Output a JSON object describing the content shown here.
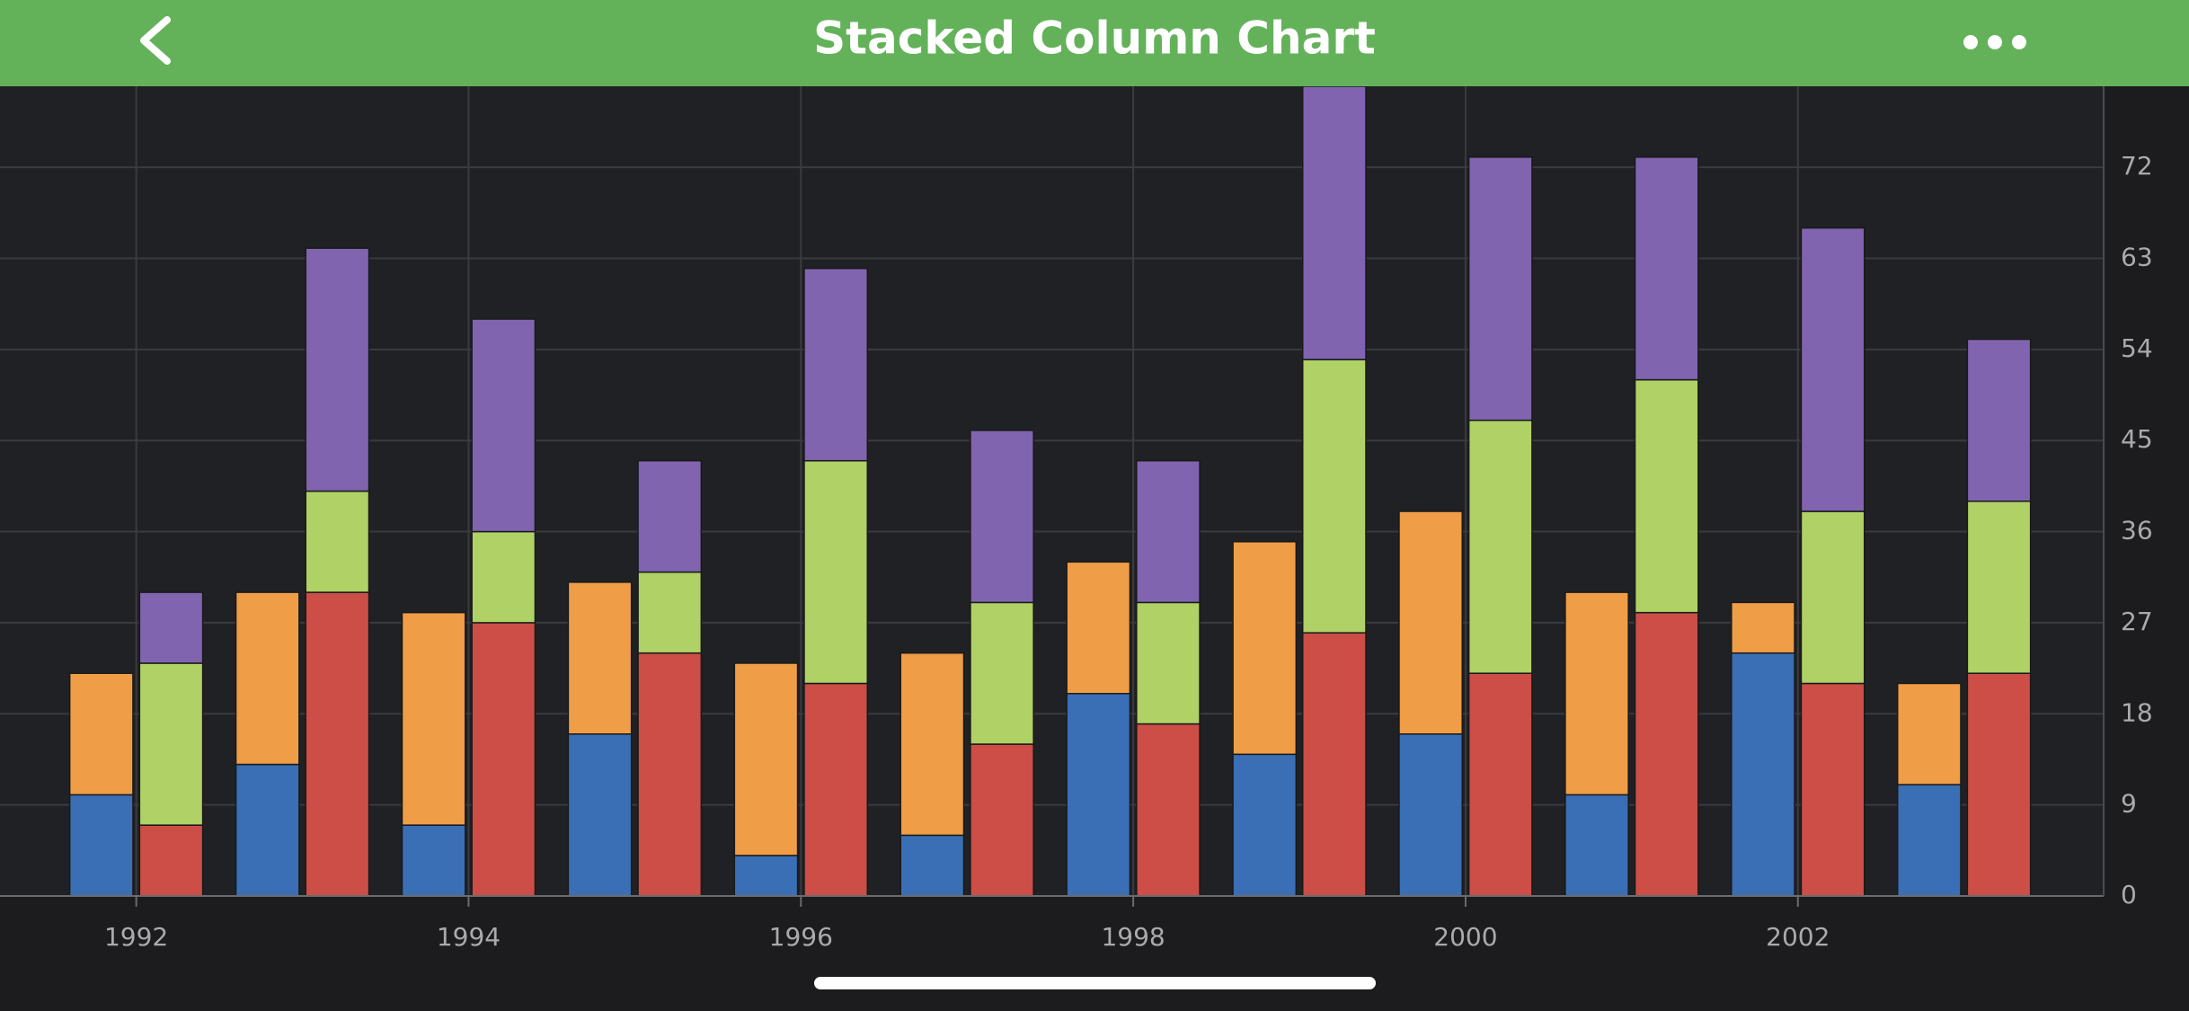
{
  "header": {
    "title": "Stacked Column Chart"
  },
  "chart_data": {
    "type": "stacked-bar",
    "x": [
      1992,
      1993,
      1994,
      1995,
      1996,
      1997,
      1998,
      1999,
      2000,
      2001,
      2002,
      2003
    ],
    "groups": [
      {
        "series": [
          {
            "color": "#3a6fb5",
            "values": [
              10,
              13,
              7,
              16,
              4,
              6,
              20,
              14,
              16,
              10,
              24,
              11
            ]
          },
          {
            "color": "#f09d47",
            "values": [
              12,
              17,
              21,
              15,
              19,
              18,
              13,
              21,
              22,
              20,
              5,
              10
            ]
          }
        ]
      },
      {
        "series": [
          {
            "color": "#cc4e47",
            "values": [
              7,
              30,
              27,
              24,
              21,
              15,
              17,
              26,
              22,
              28,
              21,
              22
            ]
          },
          {
            "color": "#b0d166",
            "values": [
              16,
              10,
              9,
              8,
              22,
              14,
              12,
              27,
              25,
              23,
              17,
              17
            ]
          },
          {
            "color": "#8064b0",
            "values": [
              7,
              24,
              21,
              11,
              19,
              17,
              14,
              27,
              26,
              22,
              28,
              16
            ]
          }
        ]
      }
    ],
    "xlim": [
      1991.18,
      2003.84
    ],
    "xticks": [
      1992,
      1994,
      1996,
      1998,
      2000,
      2002
    ],
    "ylim": [
      0,
      80
    ],
    "yticks": [
      0,
      9,
      18,
      27,
      36,
      45,
      54,
      63,
      72
    ],
    "grid": true
  }
}
